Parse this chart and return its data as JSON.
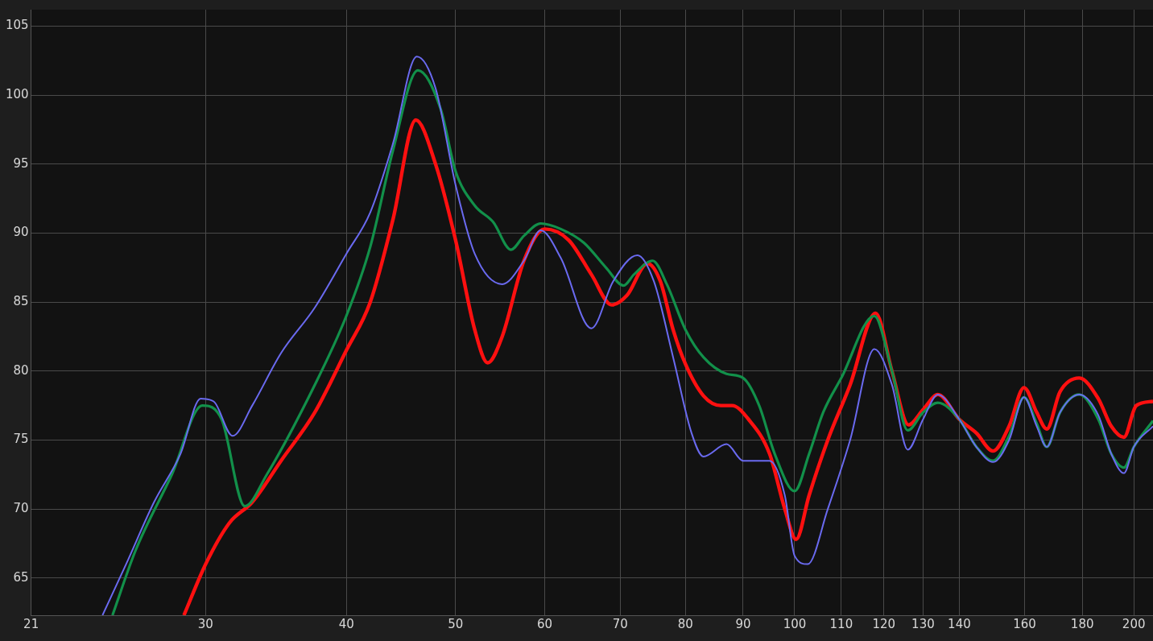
{
  "chart_data": {
    "type": "line",
    "log": "x",
    "grid": true,
    "marker": "none",
    "line_style": "solid",
    "xlim": [
      21,
      208
    ],
    "ylim": [
      62.3,
      106.2
    ],
    "xticks": [
      21,
      30,
      40,
      50,
      60,
      70,
      80,
      90,
      100,
      110,
      120,
      130,
      140,
      160,
      180,
      200
    ],
    "yticks": [
      65,
      70,
      75,
      80,
      85,
      90,
      95,
      100,
      105
    ],
    "series": [
      {
        "color": "#6a6af0",
        "x": [
          24.3,
          25.5,
          27,
          28.5,
          29.7,
          30.5,
          31.7,
          33,
          35,
          37.5,
          40,
          42,
          44,
          46.2,
          48,
          50,
          52,
          55,
          57.5,
          59.5,
          62,
          66,
          69,
          72.5,
          75,
          78,
          81,
          83,
          87,
          90,
          95,
          98,
          100,
          102.7,
          107,
          112,
          117.7,
          122,
          126,
          130,
          134,
          140,
          145,
          150,
          155,
          159.8,
          164,
          167.4,
          172,
          178.9,
          186,
          191,
          196,
          200,
          208
        ],
        "values": [
          62.3,
          66,
          70.5,
          74,
          78,
          77.8,
          75.3,
          77.5,
          81.3,
          84.6,
          88.5,
          91.5,
          96.5,
          102.8,
          100.5,
          93.5,
          88.5,
          86.3,
          88,
          90.2,
          88.2,
          83.1,
          86.5,
          88.4,
          86.5,
          81,
          75.5,
          73.8,
          74.7,
          73.5,
          73.5,
          71,
          66.6,
          66,
          70,
          75,
          81.6,
          79,
          74.3,
          76.5,
          78.3,
          76.5,
          74.5,
          73.4,
          75,
          78.1,
          76,
          74.5,
          77,
          78.3,
          76.8,
          74,
          72.6,
          74.5,
          76
        ]
      },
      {
        "color": "#12904a",
        "x": [
          24.8,
          26,
          28,
          29.8,
          31,
          32.5,
          34,
          37.5,
          40,
          42,
          44,
          46.3,
          48.5,
          50,
          52,
          54,
          56,
          57.5,
          59.5,
          62,
          65,
          68,
          70.5,
          72,
          74.8,
          77,
          80,
          83,
          87,
          90,
          93,
          96,
          100,
          103,
          106,
          110,
          117.7,
          122,
          126,
          130,
          134,
          140,
          145,
          150,
          155,
          159.8,
          164,
          167.4,
          172,
          178.9,
          186,
          191,
          196,
          200,
          208
        ],
        "values": [
          62.3,
          67,
          72.5,
          77.5,
          76.5,
          70.2,
          72.5,
          79,
          84,
          89,
          96,
          101.8,
          99,
          94.5,
          92,
          90.8,
          88.8,
          89.8,
          90.7,
          90.3,
          89.3,
          87.5,
          86.2,
          87,
          88,
          86.3,
          83,
          81,
          79.8,
          79.5,
          77.5,
          74,
          71.3,
          74,
          77,
          79.5,
          84,
          80,
          75.7,
          77,
          77.7,
          76.5,
          74.5,
          73.5,
          75.3,
          78.1,
          76.2,
          74.5,
          77,
          78.3,
          76.5,
          74,
          73,
          74.5,
          76.4
        ]
      },
      {
        "color": "#ff1010",
        "x": [
          28.7,
          30,
          31.5,
          33,
          35,
          37.5,
          40,
          42,
          44,
          46.1,
          48,
          50,
          52,
          53.4,
          55,
          57.5,
          60,
          63,
          66,
          68.8,
          71,
          74,
          76,
          78,
          80,
          83,
          86,
          88,
          91,
          95,
          98,
          100.3,
          103,
          107,
          112,
          118,
          122,
          126.2,
          130,
          134,
          140,
          145,
          150,
          155,
          159.8,
          164,
          167.4,
          172,
          178.9,
          186,
          191,
          196,
          201,
          208
        ],
        "values": [
          62.3,
          66,
          69,
          70.5,
          73.5,
          77,
          81.5,
          85,
          91,
          98.2,
          95,
          89.5,
          83,
          80.6,
          82.5,
          88,
          90.3,
          89.5,
          87,
          84.8,
          85.5,
          87.8,
          86.5,
          83,
          80.5,
          78.2,
          77.5,
          77.5,
          76.5,
          74,
          70,
          67.8,
          71,
          75,
          79,
          84.2,
          80,
          76.1,
          77.2,
          78.3,
          76.5,
          75.5,
          74.2,
          76,
          78.8,
          77,
          75.8,
          78.5,
          79.5,
          78,
          76,
          75.2,
          77.5,
          77.8
        ]
      }
    ]
  }
}
